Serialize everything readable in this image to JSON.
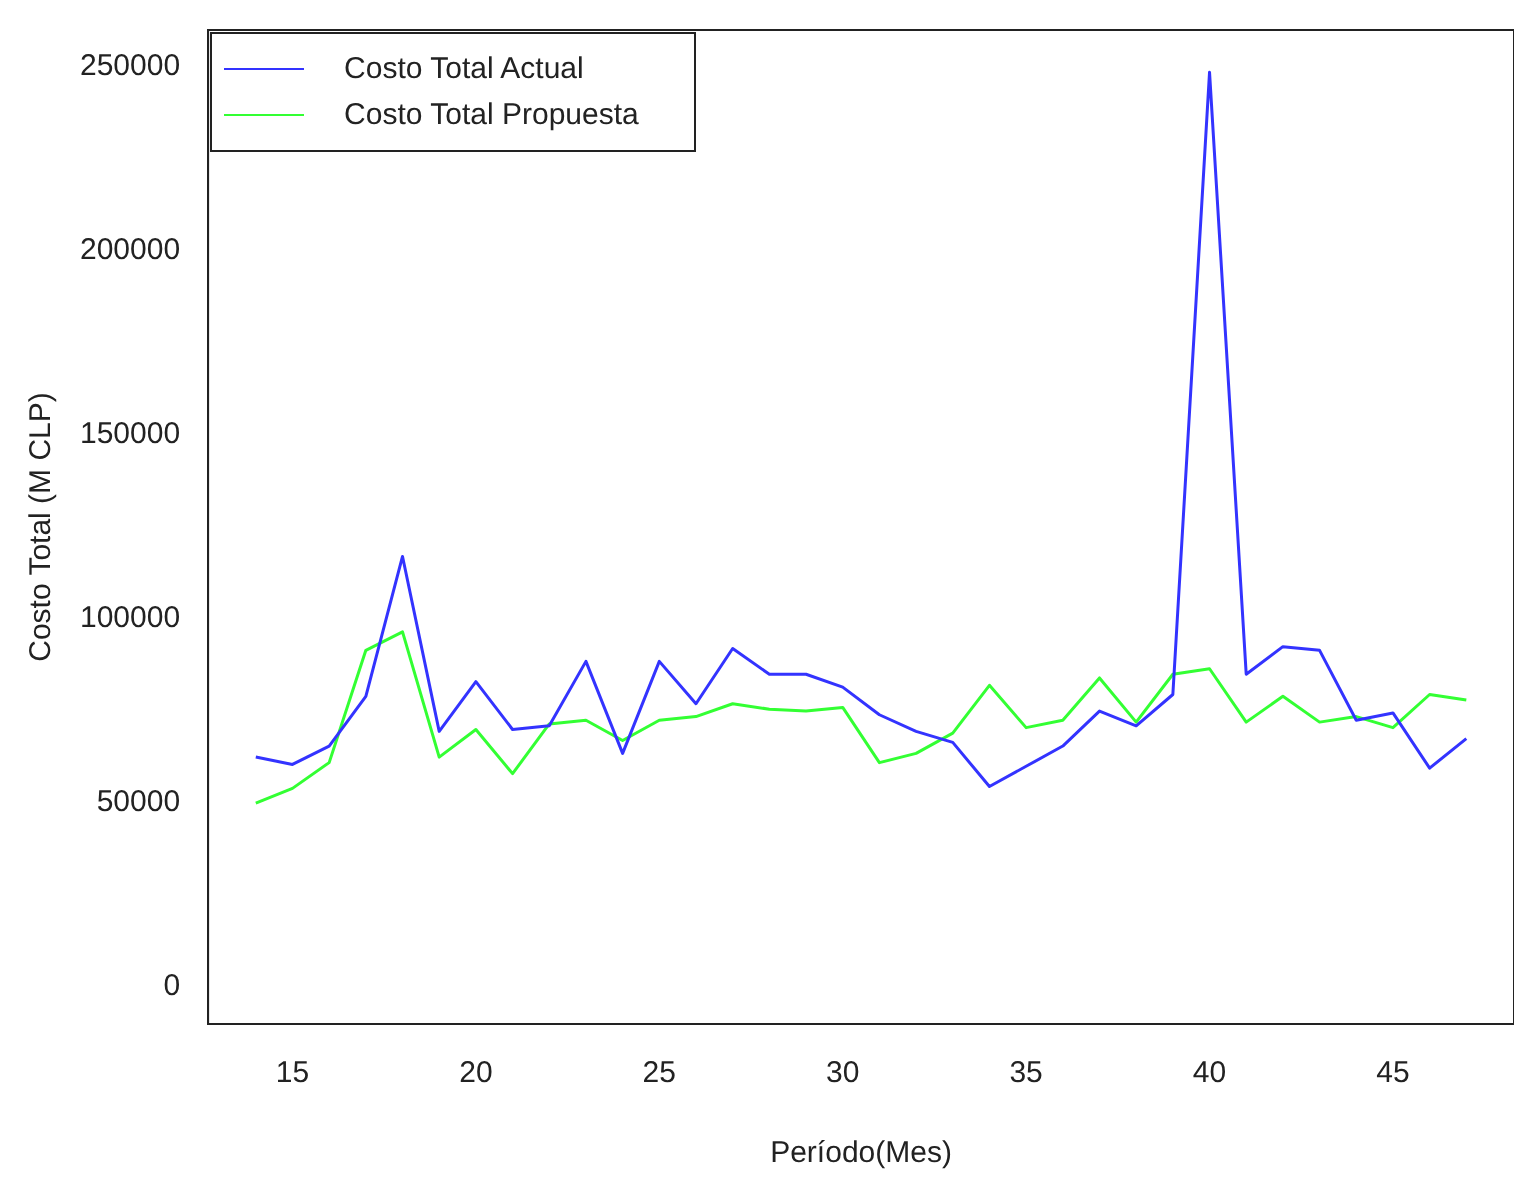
{
  "chart_data": {
    "type": "line",
    "xlabel": "Período(Mes)",
    "ylabel": "Costo Total (M CLP)",
    "x": [
      14,
      15,
      16,
      17,
      18,
      19,
      20,
      21,
      22,
      23,
      24,
      25,
      26,
      27,
      28,
      29,
      30,
      31,
      32,
      33,
      34,
      35,
      36,
      37,
      38,
      39,
      40,
      41,
      42,
      43,
      44,
      45,
      46,
      47
    ],
    "series": [
      {
        "name": "Costo Total Actual",
        "color": "#3333ff",
        "values": [
          62500,
          60500,
          65500,
          79000,
          117000,
          69500,
          83000,
          70000,
          71000,
          88500,
          63500,
          88500,
          77000,
          92000,
          85000,
          85000,
          81500,
          74000,
          69500,
          66500,
          54500,
          60000,
          65500,
          75000,
          71000,
          79500,
          248500,
          85000,
          92500,
          91500,
          72500,
          74500,
          59500,
          67500
        ]
      },
      {
        "name": "Costo Total Propuesta",
        "color": "#33ff33",
        "values": [
          50000,
          54000,
          61000,
          91500,
          96500,
          62500,
          70000,
          58000,
          71500,
          72500,
          67000,
          72500,
          73500,
          77000,
          75500,
          75000,
          76000,
          61000,
          63500,
          69000,
          82000,
          70500,
          72500,
          84000,
          72000,
          85000,
          86500,
          72000,
          79000,
          72000,
          73500,
          70500,
          79500,
          78000
        ]
      }
    ],
    "xlim": [
      12.7,
      48.3
    ],
    "xticks": [
      15,
      20,
      25,
      30,
      35,
      40,
      45
    ],
    "ylim": [
      -10000,
      260000
    ],
    "yticks": [
      0,
      50000,
      100000,
      150000,
      200000,
      250000
    ],
    "grid": false,
    "legend": "top left",
    "marker": "none",
    "line_style": "solid"
  }
}
